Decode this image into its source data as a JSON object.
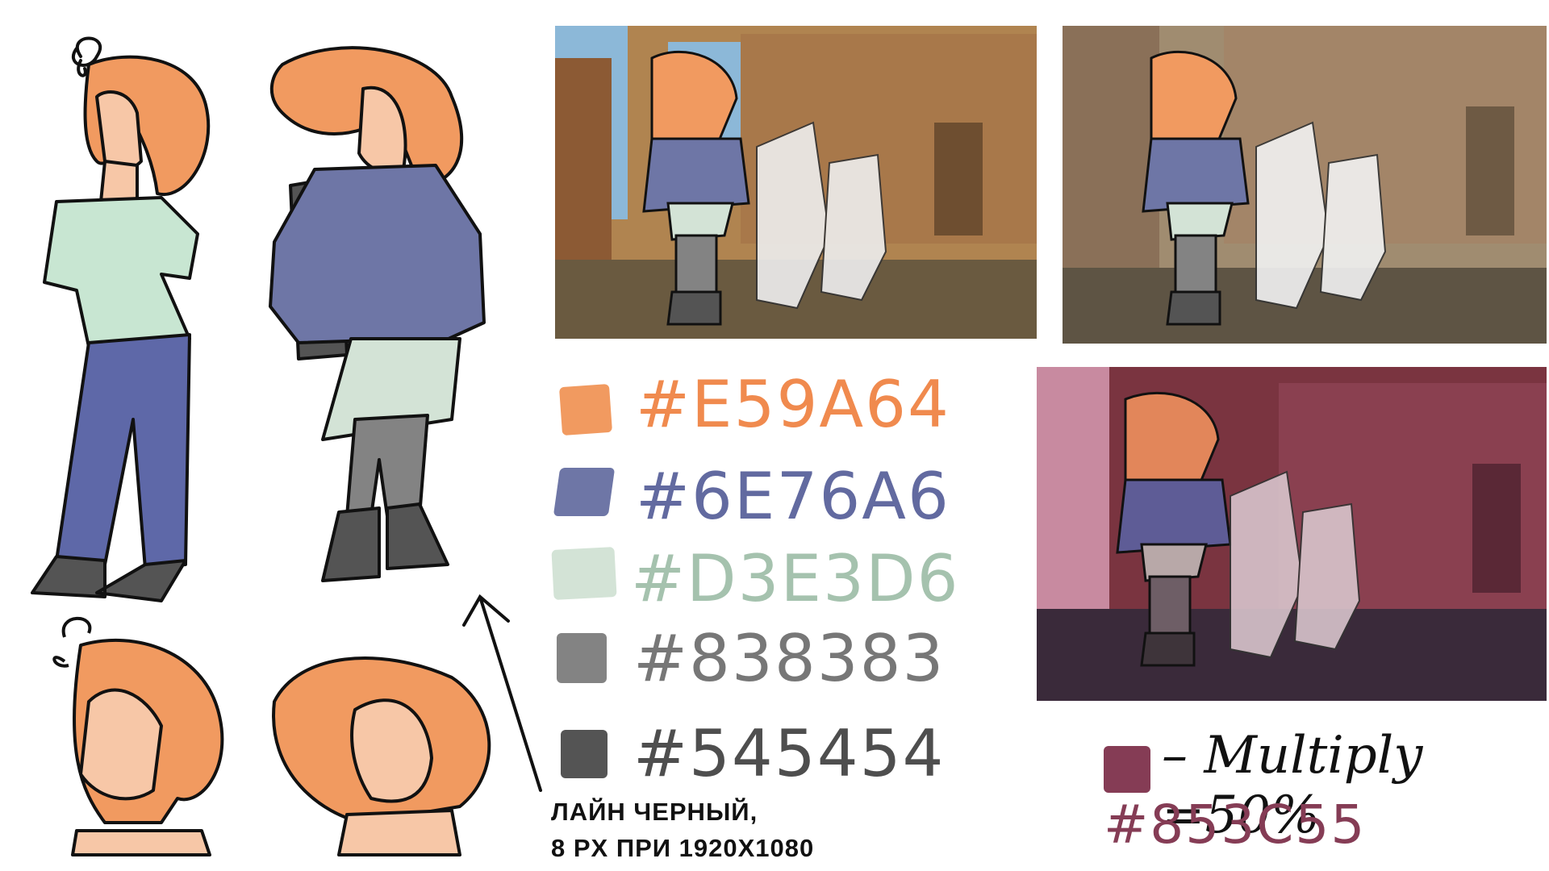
{
  "palette": [
    {
      "hex": "#E59A64",
      "color": "#E59A64",
      "text_color": "#F08A4E"
    },
    {
      "hex": "#6E76A6",
      "color": "#6E76A6",
      "text_color": "#626AA0"
    },
    {
      "hex": "#D3E3D6",
      "color": "#D3E3D6",
      "text_color": "#A5C2AE"
    },
    {
      "hex": "#838383",
      "color": "#838383",
      "text_color": "#777777"
    },
    {
      "hex": "#545454",
      "color": "#545454",
      "text_color": "#4E4E4E"
    }
  ],
  "line_note": {
    "line1": "ЛАЙН ЧЕРНЫЙ,",
    "line2": "8 PX ПРИ 1920X1080"
  },
  "multiply": {
    "label": "– Multiply =50%",
    "hex": "#853C55",
    "color": "#853C55"
  },
  "colors": {
    "hair": "#F19A60",
    "skin": "#F7C7A7",
    "hoodie": "#6E76A6",
    "shirt": "#C8E6D2",
    "pants": "#5E68A8",
    "leggings": "#838383",
    "boots": "#545454",
    "brick": "#8C5A34",
    "sky": "#8CB8D8",
    "tint": "#853C55"
  }
}
